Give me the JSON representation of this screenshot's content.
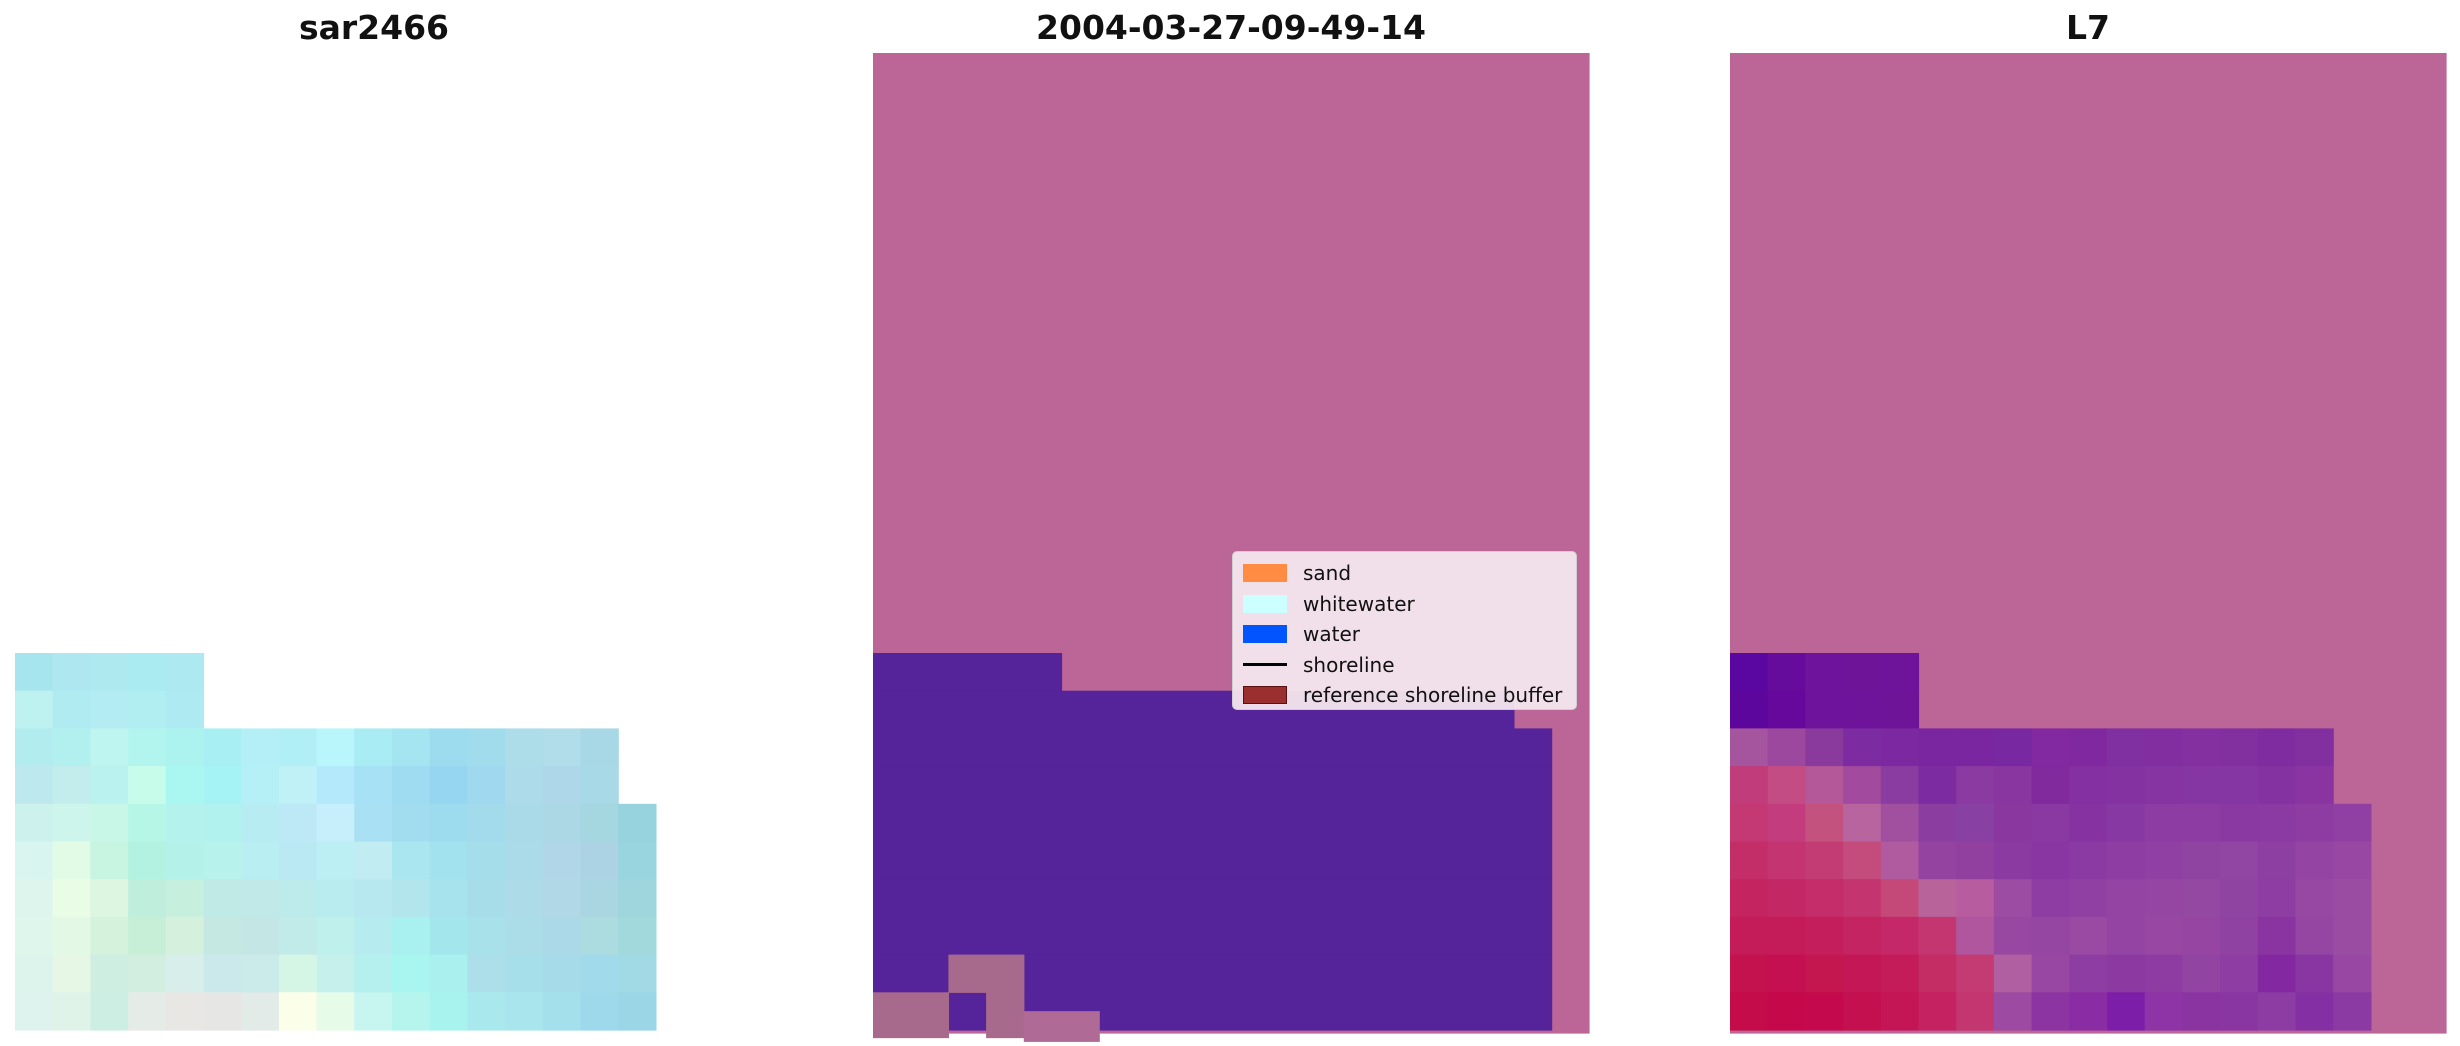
{
  "panels": [
    {
      "title": "sar2466"
    },
    {
      "title": "2004-03-27-09-49-14"
    },
    {
      "title": "L7"
    }
  ],
  "legend": {
    "items": [
      {
        "label": "sand",
        "kind": "patch",
        "color": "#ff8c42"
      },
      {
        "label": "whitewater",
        "kind": "patch",
        "color": "#ccffff"
      },
      {
        "label": "water",
        "kind": "patch",
        "color": "#0055ff"
      },
      {
        "label": "shoreline",
        "kind": "line",
        "color": "#000000"
      },
      {
        "label": "reference shoreline buffer",
        "kind": "patch",
        "color": "#9b2f2f"
      }
    ]
  },
  "colors": {
    "buffer_overlay": "#bb6696",
    "water_overlay": "#55239a"
  }
}
